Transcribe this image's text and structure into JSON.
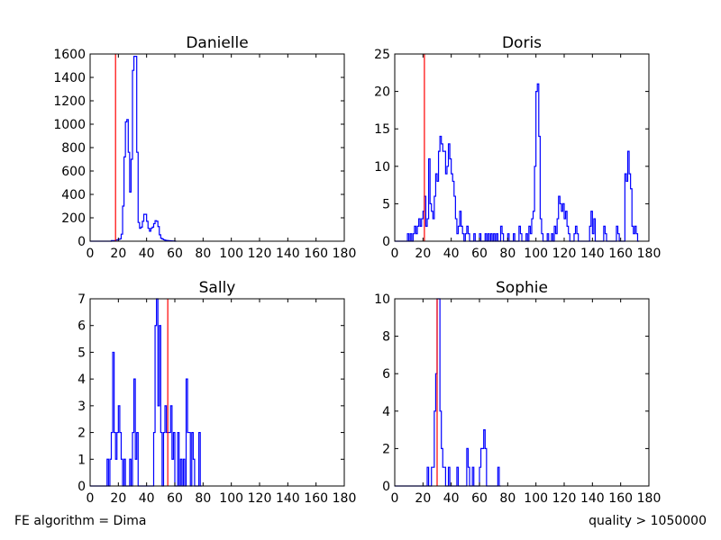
{
  "footer": {
    "left": "FE algorithm = Dima",
    "right": "quality > 1050000"
  },
  "colors": {
    "histogram": "#0000ff",
    "marker": "#ff0000",
    "axes": "#000000"
  },
  "chart_data": [
    {
      "type": "histogram",
      "title": "Danielle",
      "xlabel": "",
      "ylabel": "",
      "xlim": [
        0,
        180
      ],
      "ylim": [
        0,
        1600
      ],
      "xticks": [
        0,
        20,
        40,
        60,
        80,
        100,
        120,
        140,
        160,
        180
      ],
      "yticks": [
        0,
        200,
        400,
        600,
        800,
        1000,
        1200,
        1400,
        1600
      ],
      "bin_width": 1,
      "marker_x": 18,
      "grid": false,
      "points": [
        [
          0,
          0
        ],
        [
          14,
          0
        ],
        [
          15,
          5
        ],
        [
          16,
          5
        ],
        [
          17,
          5
        ],
        [
          18,
          10
        ],
        [
          19,
          12
        ],
        [
          20,
          15
        ],
        [
          21,
          20
        ],
        [
          22,
          60
        ],
        [
          23,
          300
        ],
        [
          24,
          720
        ],
        [
          25,
          1020
        ],
        [
          26,
          1040
        ],
        [
          27,
          760
        ],
        [
          28,
          420
        ],
        [
          29,
          700
        ],
        [
          30,
          1460
        ],
        [
          31,
          1580
        ],
        [
          32,
          1580
        ],
        [
          33,
          760
        ],
        [
          34,
          160
        ],
        [
          35,
          110
        ],
        [
          36,
          120
        ],
        [
          37,
          170
        ],
        [
          38,
          230
        ],
        [
          39,
          230
        ],
        [
          40,
          170
        ],
        [
          41,
          110
        ],
        [
          42,
          85
        ],
        [
          43,
          110
        ],
        [
          44,
          120
        ],
        [
          45,
          150
        ],
        [
          46,
          175
        ],
        [
          47,
          170
        ],
        [
          48,
          125
        ],
        [
          49,
          55
        ],
        [
          50,
          25
        ],
        [
          51,
          18
        ],
        [
          52,
          12
        ],
        [
          53,
          8
        ],
        [
          54,
          6
        ],
        [
          55,
          5
        ],
        [
          56,
          4
        ],
        [
          57,
          3
        ],
        [
          58,
          2
        ],
        [
          59,
          2
        ],
        [
          60,
          0
        ]
      ]
    },
    {
      "type": "histogram",
      "title": "Doris",
      "xlabel": "",
      "ylabel": "",
      "xlim": [
        0,
        180
      ],
      "ylim": [
        0,
        25
      ],
      "xticks": [
        0,
        20,
        40,
        60,
        80,
        100,
        120,
        140,
        160,
        180
      ],
      "yticks": [
        0,
        5,
        10,
        15,
        20,
        25
      ],
      "bin_width": 1,
      "marker_x": 21,
      "grid": false,
      "points": [
        [
          0,
          0
        ],
        [
          9,
          1
        ],
        [
          10,
          0
        ],
        [
          11,
          1
        ],
        [
          12,
          0
        ],
        [
          13,
          1
        ],
        [
          14,
          2
        ],
        [
          15,
          1
        ],
        [
          16,
          2
        ],
        [
          17,
          3
        ],
        [
          18,
          2
        ],
        [
          19,
          3
        ],
        [
          20,
          4
        ],
        [
          21,
          6
        ],
        [
          22,
          2
        ],
        [
          23,
          3
        ],
        [
          24,
          11
        ],
        [
          25,
          5
        ],
        [
          26,
          4
        ],
        [
          27,
          3
        ],
        [
          28,
          6
        ],
        [
          29,
          9
        ],
        [
          30,
          8
        ],
        [
          31,
          12
        ],
        [
          32,
          14
        ],
        [
          33,
          13
        ],
        [
          34,
          12
        ],
        [
          35,
          12
        ],
        [
          36,
          9
        ],
        [
          37,
          10
        ],
        [
          38,
          13
        ],
        [
          39,
          11
        ],
        [
          40,
          9
        ],
        [
          41,
          8
        ],
        [
          42,
          6
        ],
        [
          43,
          3
        ],
        [
          44,
          1
        ],
        [
          45,
          2
        ],
        [
          46,
          4
        ],
        [
          47,
          2
        ],
        [
          48,
          1
        ],
        [
          49,
          0
        ],
        [
          50,
          1
        ],
        [
          51,
          2
        ],
        [
          52,
          1
        ],
        [
          53,
          0
        ],
        [
          56,
          1
        ],
        [
          57,
          0
        ],
        [
          60,
          1
        ],
        [
          61,
          0
        ],
        [
          64,
          1
        ],
        [
          65,
          0
        ],
        [
          66,
          1
        ],
        [
          67,
          0
        ],
        [
          68,
          1
        ],
        [
          69,
          0
        ],
        [
          70,
          1
        ],
        [
          71,
          0
        ],
        [
          72,
          1
        ],
        [
          73,
          0
        ],
        [
          75,
          2
        ],
        [
          76,
          1
        ],
        [
          77,
          0
        ],
        [
          80,
          1
        ],
        [
          81,
          0
        ],
        [
          84,
          1
        ],
        [
          85,
          0
        ],
        [
          88,
          2
        ],
        [
          89,
          1
        ],
        [
          90,
          0
        ],
        [
          93,
          1
        ],
        [
          94,
          0
        ],
        [
          95,
          2
        ],
        [
          96,
          1
        ],
        [
          97,
          3
        ],
        [
          98,
          4
        ],
        [
          99,
          10
        ],
        [
          100,
          20
        ],
        [
          101,
          21
        ],
        [
          102,
          14
        ],
        [
          103,
          3
        ],
        [
          104,
          1
        ],
        [
          105,
          0
        ],
        [
          108,
          1
        ],
        [
          109,
          0
        ],
        [
          111,
          1
        ],
        [
          112,
          0
        ],
        [
          113,
          2
        ],
        [
          114,
          1
        ],
        [
          115,
          3
        ],
        [
          116,
          6
        ],
        [
          117,
          5
        ],
        [
          118,
          4
        ],
        [
          119,
          5
        ],
        [
          120,
          3
        ],
        [
          121,
          4
        ],
        [
          122,
          2
        ],
        [
          123,
          1
        ],
        [
          124,
          0
        ],
        [
          127,
          1
        ],
        [
          128,
          2
        ],
        [
          129,
          1
        ],
        [
          130,
          0
        ],
        [
          138,
          2
        ],
        [
          139,
          4
        ],
        [
          140,
          1
        ],
        [
          141,
          3
        ],
        [
          142,
          0
        ],
        [
          148,
          2
        ],
        [
          149,
          1
        ],
        [
          150,
          0
        ],
        [
          157,
          2
        ],
        [
          158,
          1
        ],
        [
          159,
          0
        ],
        [
          163,
          9
        ],
        [
          164,
          8
        ],
        [
          165,
          12
        ],
        [
          166,
          9
        ],
        [
          167,
          7
        ],
        [
          168,
          2
        ],
        [
          169,
          1
        ],
        [
          170,
          2
        ],
        [
          171,
          1
        ],
        [
          172,
          0
        ]
      ]
    },
    {
      "type": "histogram",
      "title": "Sally",
      "xlabel": "",
      "ylabel": "",
      "xlim": [
        0,
        180
      ],
      "ylim": [
        0,
        7
      ],
      "xticks": [
        0,
        20,
        40,
        60,
        80,
        100,
        120,
        140,
        160,
        180
      ],
      "yticks": [
        0,
        1,
        2,
        3,
        4,
        5,
        6,
        7
      ],
      "bin_width": 1,
      "marker_x": 55,
      "grid": false,
      "points": [
        [
          0,
          0
        ],
        [
          12,
          1
        ],
        [
          13,
          0
        ],
        [
          14,
          1
        ],
        [
          15,
          2
        ],
        [
          16,
          5
        ],
        [
          17,
          2
        ],
        [
          18,
          1
        ],
        [
          19,
          2
        ],
        [
          20,
          3
        ],
        [
          21,
          2
        ],
        [
          22,
          1
        ],
        [
          23,
          0
        ],
        [
          24,
          1
        ],
        [
          25,
          0
        ],
        [
          28,
          1
        ],
        [
          29,
          0
        ],
        [
          30,
          2
        ],
        [
          31,
          4
        ],
        [
          32,
          1
        ],
        [
          33,
          2
        ],
        [
          34,
          0
        ],
        [
          45,
          2
        ],
        [
          46,
          6
        ],
        [
          47,
          7
        ],
        [
          48,
          3
        ],
        [
          49,
          6
        ],
        [
          50,
          2
        ],
        [
          51,
          0
        ],
        [
          52,
          2
        ],
        [
          53,
          3
        ],
        [
          54,
          2
        ],
        [
          55,
          2
        ],
        [
          56,
          2
        ],
        [
          57,
          3
        ],
        [
          58,
          1
        ],
        [
          59,
          2
        ],
        [
          60,
          0
        ],
        [
          62,
          2
        ],
        [
          63,
          0
        ],
        [
          64,
          1
        ],
        [
          65,
          0
        ],
        [
          66,
          1
        ],
        [
          67,
          0
        ],
        [
          68,
          4
        ],
        [
          69,
          2
        ],
        [
          70,
          2
        ],
        [
          71,
          0
        ],
        [
          72,
          2
        ],
        [
          73,
          1
        ],
        [
          74,
          0
        ],
        [
          77,
          2
        ],
        [
          78,
          0
        ]
      ]
    },
    {
      "type": "histogram",
      "title": "Sophie",
      "xlabel": "",
      "ylabel": "",
      "xlim": [
        0,
        180
      ],
      "ylim": [
        0,
        10
      ],
      "xticks": [
        0,
        20,
        40,
        60,
        80,
        100,
        120,
        140,
        160,
        180
      ],
      "yticks": [
        0,
        2,
        4,
        6,
        8,
        10
      ],
      "bin_width": 1,
      "marker_x": 30,
      "grid": false,
      "points": [
        [
          0,
          0
        ],
        [
          23,
          1
        ],
        [
          24,
          0
        ],
        [
          26,
          1
        ],
        [
          27,
          1
        ],
        [
          28,
          4
        ],
        [
          29,
          6
        ],
        [
          30,
          10
        ],
        [
          31,
          10
        ],
        [
          32,
          4
        ],
        [
          33,
          2
        ],
        [
          34,
          1
        ],
        [
          35,
          1
        ],
        [
          36,
          0
        ],
        [
          38,
          1
        ],
        [
          39,
          0
        ],
        [
          44,
          1
        ],
        [
          45,
          0
        ],
        [
          51,
          2
        ],
        [
          52,
          1
        ],
        [
          53,
          0
        ],
        [
          55,
          1
        ],
        [
          56,
          0
        ],
        [
          60,
          1
        ],
        [
          61,
          2
        ],
        [
          62,
          2
        ],
        [
          63,
          3
        ],
        [
          64,
          2
        ],
        [
          65,
          0
        ],
        [
          73,
          1
        ],
        [
          74,
          0
        ]
      ]
    }
  ]
}
